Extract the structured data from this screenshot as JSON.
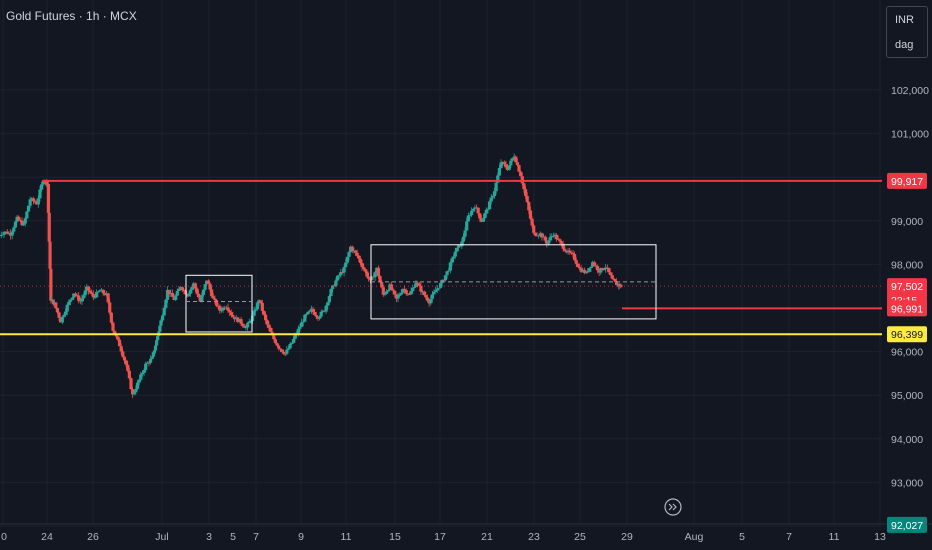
{
  "header": {
    "title": "Gold Futures · 1h · MCX"
  },
  "unit_box": {
    "currency": "INR",
    "unit": "dag"
  },
  "colors": {
    "background": "#131722",
    "up_candle": "#26a69a",
    "down_candle": "#ef5350",
    "resistance_line": "#f23645",
    "support_line": "#ffeb3b",
    "box_border": "#ffffff",
    "current_price_tag": "#f23645",
    "support_tag": "#ffeb3b"
  },
  "chart_data": {
    "type": "candlestick",
    "title": "Gold Futures · 1h · MCX",
    "xlabel": "",
    "ylabel": "",
    "ylim": [
      91800,
      103100
    ],
    "y_ticks": [
      "102,000",
      "101,000",
      "99,000",
      "98,000",
      "96,000",
      "95,000",
      "94,000",
      "93,000"
    ],
    "x_ticks": [
      "0",
      "24",
      "26",
      "Jul",
      "3",
      "5",
      "7",
      "9",
      "11",
      "15",
      "17",
      "21",
      "23",
      "25",
      "29",
      "Aug",
      "5",
      "7",
      "11",
      "13"
    ],
    "price_tags": [
      {
        "label": "99,917",
        "value": 99917,
        "style": "red"
      },
      {
        "label": "97,502",
        "value": 97502,
        "style": "red"
      },
      {
        "label": "23:15",
        "value": 97300,
        "style": "red-sub"
      },
      {
        "label": "96,991",
        "value": 96991,
        "style": "red"
      },
      {
        "label": "96,399",
        "value": 96399,
        "style": "yellow"
      },
      {
        "label": "92,027",
        "value": 92027,
        "style": "teal"
      }
    ],
    "horizontal_lines": [
      {
        "value": 99917,
        "color": "#f23645",
        "from": "24",
        "to": "axis"
      },
      {
        "value": 96399,
        "color": "#ffeb3b",
        "from": "start",
        "to": "axis"
      },
      {
        "value": 96991,
        "color": "#f23645",
        "from": "29",
        "to": "axis"
      },
      {
        "value": 97502,
        "color": "#f23645",
        "from": "start",
        "to": "axis",
        "dotted": true
      }
    ],
    "rectangles": [
      {
        "x_from": "2.6",
        "x_to": "5.7",
        "y_from": 96450,
        "y_to": 97750,
        "mid": 97150
      },
      {
        "x_from": "12.7",
        "x_to": "29.2",
        "y_from": 96750,
        "y_to": 98450,
        "mid": 97600
      }
    ],
    "price_path": [
      [
        -0.5,
        98600
      ],
      [
        0,
        98750
      ],
      [
        0.3,
        98700
      ],
      [
        0.6,
        99050
      ],
      [
        0.9,
        98900
      ],
      [
        1.2,
        99500
      ],
      [
        1.5,
        99400
      ],
      [
        1.8,
        99950
      ],
      [
        2.0,
        99850
      ],
      [
        2.15,
        97200
      ],
      [
        2.3,
        97100
      ],
      [
        2.6,
        96700
      ],
      [
        2.9,
        97050
      ],
      [
        3.2,
        97350
      ],
      [
        3.5,
        97150
      ],
      [
        3.8,
        97450
      ],
      [
        4.1,
        97250
      ],
      [
        4.4,
        97400
      ],
      [
        4.7,
        97300
      ],
      [
        5.0,
        96500
      ],
      [
        5.3,
        96150
      ],
      [
        5.6,
        95700
      ],
      [
        5.9,
        95000
      ],
      [
        6.2,
        95350
      ],
      [
        6.5,
        95700
      ],
      [
        6.8,
        95850
      ],
      [
        7.0,
        96250
      ],
      [
        7.2,
        96700
      ],
      [
        7.5,
        97400
      ],
      [
        7.8,
        97200
      ],
      [
        8.1,
        97500
      ],
      [
        8.4,
        97300
      ],
      [
        8.7,
        97550
      ],
      [
        9.0,
        97150
      ],
      [
        9.3,
        97650
      ],
      [
        9.6,
        97200
      ],
      [
        9.9,
        96950
      ],
      [
        10.2,
        97050
      ],
      [
        10.5,
        96800
      ],
      [
        10.8,
        96700
      ],
      [
        11.1,
        96550
      ],
      [
        11.4,
        96800
      ],
      [
        11.7,
        97200
      ],
      [
        12.0,
        96700
      ],
      [
        12.3,
        96350
      ],
      [
        12.6,
        96100
      ],
      [
        12.9,
        95950
      ],
      [
        13.2,
        96200
      ],
      [
        13.5,
        96500
      ],
      [
        13.8,
        96800
      ],
      [
        14.1,
        96950
      ],
      [
        14.4,
        96800
      ],
      [
        14.7,
        96950
      ],
      [
        15.0,
        97400
      ],
      [
        15.3,
        97700
      ],
      [
        15.6,
        97900
      ],
      [
        15.9,
        98400
      ],
      [
        16.2,
        98200
      ],
      [
        16.5,
        97900
      ],
      [
        16.8,
        97600
      ],
      [
        17.1,
        97900
      ],
      [
        17.4,
        97300
      ],
      [
        17.7,
        97500
      ],
      [
        18.0,
        97200
      ],
      [
        18.3,
        97450
      ],
      [
        18.6,
        97300
      ],
      [
        18.9,
        97600
      ],
      [
        19.2,
        97350
      ],
      [
        19.5,
        97150
      ],
      [
        19.8,
        97400
      ],
      [
        20.1,
        97600
      ],
      [
        20.4,
        97900
      ],
      [
        20.7,
        98300
      ],
      [
        21.0,
        98500
      ],
      [
        21.3,
        99100
      ],
      [
        21.6,
        99350
      ],
      [
        21.9,
        99000
      ],
      [
        22.2,
        99300
      ],
      [
        22.5,
        99700
      ],
      [
        22.8,
        100350
      ],
      [
        23.1,
        100200
      ],
      [
        23.4,
        100500
      ],
      [
        23.7,
        100050
      ],
      [
        24.0,
        99400
      ],
      [
        24.3,
        98700
      ],
      [
        24.6,
        98700
      ],
      [
        24.9,
        98500
      ],
      [
        25.2,
        98700
      ],
      [
        25.5,
        98500
      ],
      [
        25.8,
        98300
      ],
      [
        26.1,
        98200
      ],
      [
        26.4,
        97900
      ],
      [
        26.7,
        97800
      ],
      [
        27.0,
        98050
      ],
      [
        27.3,
        97850
      ],
      [
        27.6,
        97950
      ],
      [
        27.9,
        97650
      ],
      [
        28.1,
        97550
      ],
      [
        28.3,
        97502
      ]
    ]
  },
  "goto_button": {
    "icon": "goto-realtime-icon"
  }
}
